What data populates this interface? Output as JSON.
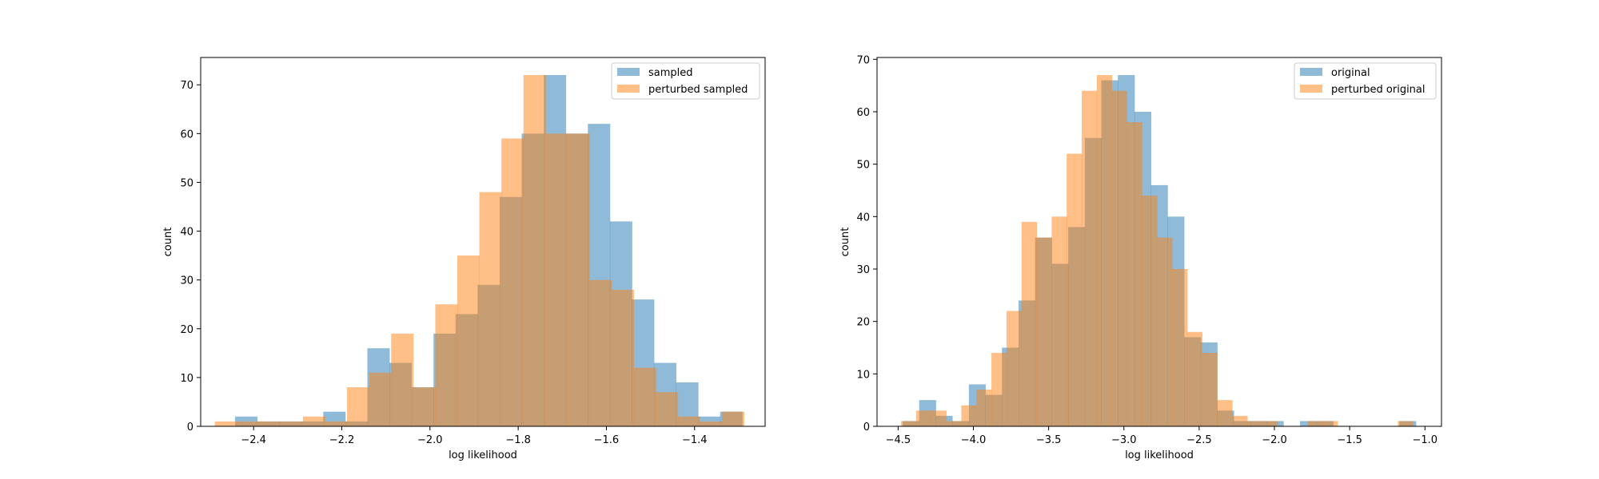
{
  "colors": {
    "series1": "#1f77b4",
    "series2": "#ff7f0e",
    "bar_alpha": 0.5
  },
  "chart_data": [
    {
      "type": "histogram",
      "xlabel": "log likelihood",
      "ylabel": "count",
      "xlim": [
        -2.52,
        -1.24
      ],
      "ylim": [
        0,
        75.6
      ],
      "xticks": [
        -2.4,
        -2.2,
        -2.0,
        -1.8,
        -1.6,
        -1.4
      ],
      "xtick_labels": [
        "−2.4",
        "−2.2",
        "−2.0",
        "−1.8",
        "−1.6",
        "−1.4"
      ],
      "yticks": [
        0,
        10,
        20,
        30,
        40,
        50,
        60,
        70
      ],
      "ytick_labels": [
        "0",
        "10",
        "20",
        "30",
        "40",
        "50",
        "60",
        "70"
      ],
      "legend_position": "upper right",
      "series": [
        {
          "name": "sampled",
          "bin_edges": [
            -2.442,
            -2.392,
            -2.342,
            -2.292,
            -2.242,
            -2.192,
            -2.142,
            -2.092,
            -2.042,
            -1.992,
            -1.942,
            -1.892,
            -1.842,
            -1.792,
            -1.742,
            -1.692,
            -1.642,
            -1.592,
            -1.542,
            -1.492,
            -1.442,
            -1.392,
            -1.342,
            -1.292
          ],
          "counts": [
            2,
            1,
            1,
            1,
            3,
            1,
            16,
            13,
            8,
            19,
            23,
            29,
            47,
            60,
            72,
            60,
            62,
            42,
            26,
            13,
            9,
            2,
            3
          ]
        },
        {
          "name": "perturbed sampled",
          "bin_edges": [
            -2.488,
            -2.438,
            -2.388,
            -2.338,
            -2.288,
            -2.238,
            -2.188,
            -2.138,
            -2.088,
            -2.038,
            -1.988,
            -1.938,
            -1.888,
            -1.838,
            -1.788,
            -1.738,
            -1.688,
            -1.638,
            -1.588,
            -1.538,
            -1.488,
            -1.438,
            -1.388,
            -1.338,
            -1.288
          ],
          "counts": [
            1,
            1,
            1,
            1,
            2,
            1,
            8,
            11,
            19,
            8,
            25,
            35,
            48,
            59,
            72,
            60,
            60,
            30,
            28,
            12,
            7,
            2,
            1,
            3
          ]
        }
      ]
    },
    {
      "type": "histogram",
      "xlabel": "log likelihood",
      "ylabel": "count",
      "xlim": [
        -4.64,
        -0.89
      ],
      "ylim": [
        0,
        70.35
      ],
      "xticks": [
        -4.5,
        -4.0,
        -3.5,
        -3.0,
        -2.5,
        -2.0,
        -1.5,
        -1.0
      ],
      "xtick_labels": [
        "−4.5",
        "−4.0",
        "−3.5",
        "−3.0",
        "−2.5",
        "−2.0",
        "−1.5",
        "−1.0"
      ],
      "yticks": [
        0,
        10,
        20,
        30,
        40,
        50,
        60,
        70
      ],
      "ytick_labels": [
        "0",
        "10",
        "20",
        "30",
        "40",
        "50",
        "60",
        "70"
      ],
      "legend_position": "upper right",
      "series": [
        {
          "name": "original",
          "bin_edges": [
            -4.47,
            -4.36,
            -4.25,
            -4.14,
            -4.03,
            -3.92,
            -3.81,
            -3.7,
            -3.59,
            -3.48,
            -3.37,
            -3.26,
            -3.15,
            -3.04,
            -2.93,
            -2.82,
            -2.71,
            -2.6,
            -2.49,
            -2.38,
            -2.27,
            -2.16,
            -2.05,
            -1.94,
            -1.83,
            -1.72,
            -1.61,
            -1.5,
            -1.39,
            -1.28,
            -1.17,
            -1.06
          ],
          "counts": [
            1,
            5,
            2,
            1,
            8,
            6,
            15,
            24,
            36,
            31,
            38,
            55,
            66,
            67,
            60,
            46,
            40,
            17,
            16,
            3,
            1,
            1,
            1,
            0,
            1,
            1,
            0,
            0,
            0,
            0,
            1
          ]
        },
        {
          "name": "perturbed original",
          "bin_edges": [
            -4.48,
            -4.38,
            -4.28,
            -4.18,
            -4.08,
            -3.98,
            -3.88,
            -3.78,
            -3.68,
            -3.58,
            -3.48,
            -3.38,
            -3.28,
            -3.18,
            -3.08,
            -2.98,
            -2.88,
            -2.78,
            -2.68,
            -2.58,
            -2.48,
            -2.38,
            -2.28,
            -2.18,
            -2.08,
            -1.98,
            -1.88,
            -1.78,
            -1.68,
            -1.58,
            -1.48,
            -1.38,
            -1.28,
            -1.18,
            -1.08
          ],
          "counts": [
            1,
            3,
            3,
            1,
            4,
            7,
            14,
            22,
            39,
            36,
            40,
            52,
            64,
            67,
            64,
            58,
            44,
            36,
            30,
            18,
            14,
            5,
            2,
            1,
            1,
            0,
            0,
            1,
            1,
            0,
            0,
            0,
            0,
            1
          ]
        }
      ]
    }
  ]
}
